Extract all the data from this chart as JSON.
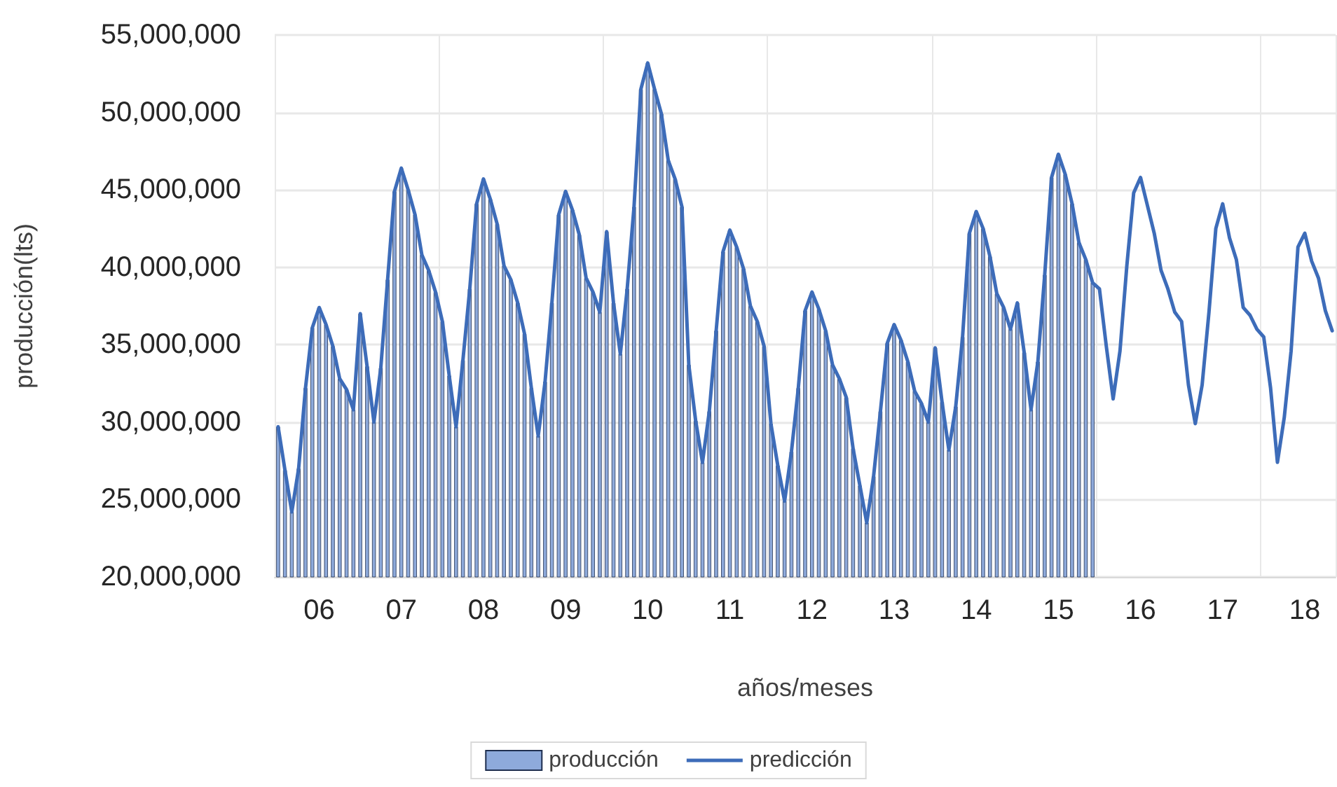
{
  "chart_data": {
    "type": "bar",
    "xlabel": "años/meses",
    "ylabel": "producción(lts)",
    "categories": [
      null,
      null,
      null,
      null,
      null,
      null,
      "06",
      null,
      null,
      null,
      null,
      null,
      null,
      null,
      null,
      null,
      null,
      null,
      "07",
      null,
      null,
      null,
      null,
      null,
      null,
      null,
      null,
      null,
      null,
      null,
      "08",
      null,
      null,
      null,
      null,
      null,
      null,
      null,
      null,
      null,
      null,
      null,
      "09",
      null,
      null,
      null,
      null,
      null,
      null,
      null,
      null,
      null,
      null,
      null,
      "10",
      null,
      null,
      null,
      null,
      null,
      null,
      null,
      null,
      null,
      null,
      null,
      "11",
      null,
      null,
      null,
      null,
      null,
      null,
      null,
      null,
      null,
      null,
      null,
      "12",
      null,
      null,
      null,
      null,
      null,
      null,
      null,
      null,
      null,
      null,
      null,
      "13",
      null,
      null,
      null,
      null,
      null,
      null,
      null,
      null,
      null,
      null,
      null,
      "14",
      null,
      null,
      null,
      null,
      null,
      null,
      null,
      null,
      null,
      null,
      null,
      "15",
      null,
      null,
      null,
      null,
      null,
      null,
      null,
      null,
      null,
      null,
      null,
      "16",
      null,
      null,
      null,
      null,
      null,
      null,
      null,
      null,
      null,
      null,
      null,
      "17",
      null,
      null,
      null,
      null,
      null,
      null,
      null,
      null,
      null,
      null,
      null,
      "18",
      null,
      null,
      null,
      null
    ],
    "series": [
      {
        "name": "producción",
        "type": "bar",
        "color": "#8eaadb",
        "values": [
          29700000,
          26900000,
          24200000,
          27000000,
          32200000,
          36100000,
          37400000,
          36300000,
          34900000,
          32800000,
          32100000,
          30800000,
          37000000,
          33600000,
          30000000,
          33500000,
          39200000,
          44900000,
          46400000,
          45000000,
          43400000,
          40800000,
          39800000,
          38400000,
          36500000,
          33000000,
          29700000,
          34000000,
          38600000,
          44100000,
          45700000,
          44400000,
          42800000,
          40100000,
          39200000,
          37700000,
          35700000,
          32200000,
          29100000,
          32600000,
          37700000,
          43400000,
          44900000,
          43700000,
          42100000,
          39300000,
          38400000,
          37100000,
          42300000,
          37700000,
          34400000,
          38600000,
          43900000,
          51500000,
          53200000,
          51500000,
          49900000,
          46900000,
          45700000,
          43900000,
          33700000,
          30100000,
          27400000,
          30700000,
          35900000,
          41000000,
          42400000,
          41300000,
          39900000,
          37500000,
          36500000,
          34900000,
          29900000,
          27200000,
          24900000,
          28100000,
          32200000,
          37200000,
          38400000,
          37300000,
          35900000,
          33700000,
          32800000,
          31600000,
          28300000,
          25900000,
          23500000,
          26500000,
          30700000,
          35100000,
          36300000,
          35300000,
          33900000,
          32000000,
          31200000,
          30000000,
          34800000,
          31300000,
          28200000,
          31000000,
          35500000,
          42200000,
          43600000,
          42500000,
          40700000,
          38300000,
          37400000,
          36000000,
          37700000,
          34500000,
          30800000,
          33900000,
          39500000,
          45800000,
          47300000,
          46000000,
          44100000,
          41600000,
          40500000,
          39000000,
          null,
          null,
          null,
          null,
          null,
          null,
          null,
          null,
          null,
          null,
          null,
          null,
          null,
          null,
          null,
          null,
          null,
          null,
          null,
          null,
          null,
          null,
          null,
          null,
          null,
          null,
          null,
          null,
          null,
          null,
          null,
          null,
          null,
          null,
          null
        ]
      },
      {
        "name": "predicción",
        "type": "line",
        "color": "#3d6cb9",
        "values": [
          29700000,
          26900000,
          24200000,
          27000000,
          32200000,
          36100000,
          37400000,
          36300000,
          34900000,
          32800000,
          32100000,
          30800000,
          37000000,
          33600000,
          30000000,
          33500000,
          39200000,
          44900000,
          46400000,
          45000000,
          43400000,
          40800000,
          39800000,
          38400000,
          36500000,
          33000000,
          29700000,
          34000000,
          38600000,
          44100000,
          45700000,
          44400000,
          42800000,
          40100000,
          39200000,
          37700000,
          35700000,
          32200000,
          29100000,
          32600000,
          37700000,
          43400000,
          44900000,
          43700000,
          42100000,
          39300000,
          38400000,
          37100000,
          42300000,
          37700000,
          34400000,
          38600000,
          43900000,
          51500000,
          53200000,
          51500000,
          49900000,
          46900000,
          45700000,
          43900000,
          33700000,
          30100000,
          27400000,
          30700000,
          35900000,
          41000000,
          42400000,
          41300000,
          39900000,
          37500000,
          36500000,
          34900000,
          29900000,
          27200000,
          24900000,
          28100000,
          32200000,
          37200000,
          38400000,
          37300000,
          35900000,
          33700000,
          32800000,
          31600000,
          28300000,
          25900000,
          23500000,
          26500000,
          30700000,
          35100000,
          36300000,
          35300000,
          33900000,
          32000000,
          31200000,
          30000000,
          34800000,
          31300000,
          28200000,
          31000000,
          35500000,
          42200000,
          43600000,
          42500000,
          40700000,
          38300000,
          37400000,
          36000000,
          37700000,
          34500000,
          30800000,
          33900000,
          39500000,
          45800000,
          47300000,
          46000000,
          44100000,
          41600000,
          40500000,
          39000000,
          38600000,
          34900000,
          31500000,
          34600000,
          40100000,
          44800000,
          45800000,
          44000000,
          42200000,
          39800000,
          38600000,
          37100000,
          36500000,
          32400000,
          29900000,
          32400000,
          37100000,
          42500000,
          44100000,
          41900000,
          40500000,
          37400000,
          36900000,
          36000000,
          35500000,
          32200000,
          27400000,
          30300000,
          34600000,
          41300000,
          42200000,
          40400000,
          39300000,
          37200000,
          35900000
        ]
      }
    ],
    "ylim": [
      20000000,
      55000000
    ],
    "yticks": [
      {
        "value": 20000000,
        "label": "20,000,000"
      },
      {
        "value": 25000000,
        "label": "25,000,000"
      },
      {
        "value": 30000000,
        "label": "30,000,000"
      },
      {
        "value": 35000000,
        "label": "35,000,000"
      },
      {
        "value": 40000000,
        "label": "40,000,000"
      },
      {
        "value": 45000000,
        "label": "45,000,000"
      },
      {
        "value": 50000000,
        "label": "50,000,000"
      },
      {
        "value": 55000000,
        "label": "55,000,000"
      }
    ],
    "grid": true,
    "legend": "bottom",
    "marker": "none",
    "line_style": "solid"
  }
}
